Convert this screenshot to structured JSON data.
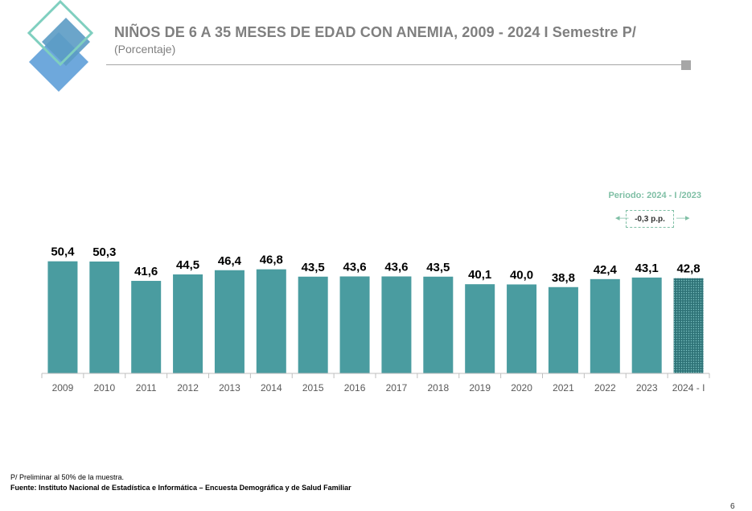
{
  "header": {
    "title": "NIÑOS DE 6 A 35 MESES DE EDAD CON ANEMIA, 2009 - 2024 I Semestre P/",
    "subtitle": "(Porcentaje)"
  },
  "annotation": {
    "period_label": "Periodo: 2024 - I /2023",
    "change_label": "-0,3 p.p.",
    "arrow_left": "◂—",
    "arrow_right": "—▸"
  },
  "chart_data": {
    "type": "bar",
    "categories": [
      "2009",
      "2010",
      "2011",
      "2012",
      "2013",
      "2014",
      "2015",
      "2016",
      "2017",
      "2018",
      "2019",
      "2020",
      "2021",
      "2022",
      "2023",
      "2024 - I"
    ],
    "values": [
      50.4,
      50.3,
      41.6,
      44.5,
      46.4,
      46.8,
      43.5,
      43.6,
      43.6,
      43.5,
      40.1,
      40.0,
      38.8,
      42.4,
      43.1,
      42.8
    ],
    "value_labels": [
      "50,4",
      "50,3",
      "41,6",
      "44,5",
      "46,4",
      "46,8",
      "43,5",
      "43,6",
      "43,6",
      "43,5",
      "40,1",
      "40,0",
      "38,8",
      "42,4",
      "43,1",
      "42,8"
    ],
    "ylim": [
      0,
      55
    ],
    "grid": false,
    "legend": "none",
    "highlight_last": true,
    "colors": {
      "bar": "#4a9ca0",
      "highlight": "#3d8a8e",
      "axis": "#bfbfbf",
      "label": "#000000",
      "tick": "#595959"
    }
  },
  "footer": {
    "note": "P/ Preliminar al 50% de la muestra.",
    "source": "Fuente: Instituto Nacional de Estadística e Informática – Encuesta Demográfica y de Salud Familiar",
    "page_number": "6"
  }
}
